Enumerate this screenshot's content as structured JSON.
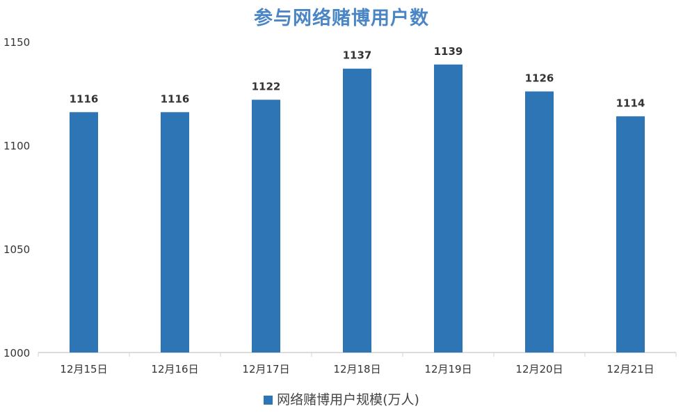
{
  "chart_data": {
    "type": "bar",
    "title": "参与网络赌博用户数",
    "categories": [
      "12月15日",
      "12月16日",
      "12月17日",
      "12月18日",
      "12月19日",
      "12月20日",
      "12月21日"
    ],
    "series": [
      {
        "name": "网络赌博用户规模(万人)",
        "values": [
          1116,
          1116,
          1122,
          1137,
          1139,
          1126,
          1114
        ],
        "color": "#2e75b6"
      }
    ],
    "yticks": [
      1000,
      1050,
      1100,
      1150
    ],
    "ylim": [
      1000,
      1150
    ],
    "grid": false,
    "data_labels": true,
    "legend": "bottom"
  }
}
